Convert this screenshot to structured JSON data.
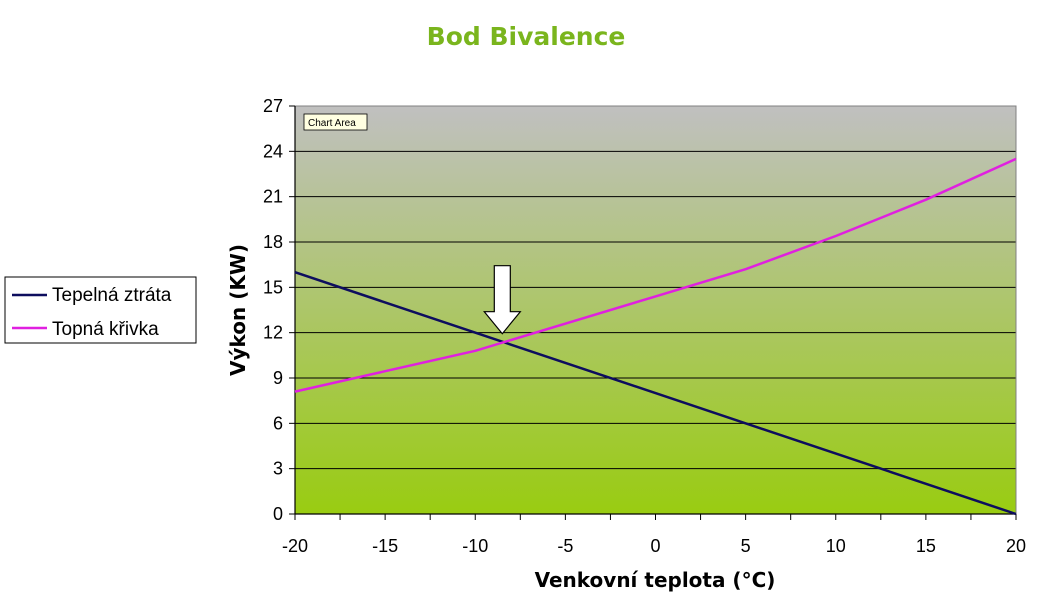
{
  "chart_data": {
    "type": "line",
    "title": "Bod Bivalence",
    "xlabel": "Venkovní teplota (°C)",
    "ylabel": "Výkon (KW)",
    "xlim": [
      -20,
      20
    ],
    "ylim": [
      0,
      27
    ],
    "x_ticks": [
      -20,
      -15,
      -10,
      -5,
      0,
      5,
      10,
      15,
      20
    ],
    "x_minor_step": 2.5,
    "y_ticks": [
      0,
      3,
      6,
      9,
      12,
      15,
      18,
      21,
      24,
      27
    ],
    "grid": "horizontal",
    "legend_position": "left",
    "series": [
      {
        "name": "Tepelná ztráta",
        "color": "#0d0d5e",
        "x": [
          -20,
          20
        ],
        "y": [
          16,
          0
        ]
      },
      {
        "name": "Topná křivka",
        "color": "#e020e0",
        "x": [
          -20,
          -10,
          0,
          5,
          10,
          15,
          20
        ],
        "y": [
          8.1,
          10.8,
          14.4,
          16.2,
          18.4,
          20.8,
          23.5
        ]
      }
    ],
    "annotation": {
      "type": "arrow",
      "x": -8.5,
      "y": 11.4,
      "fill": "#ffffff"
    },
    "tooltip": "Chart Area",
    "title_color": "#7ab51d",
    "plot_gradient": [
      "#c0c0c0",
      "#99cc11"
    ]
  }
}
